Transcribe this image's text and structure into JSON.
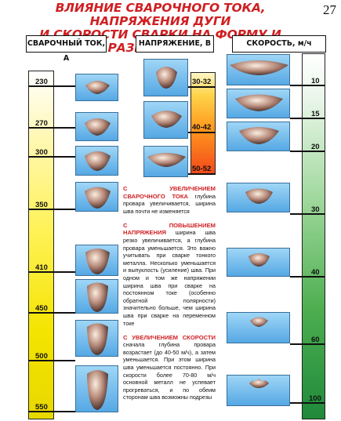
{
  "page": {
    "title_line1": "ВЛИЯНИЕ СВАРОЧНОГО ТОКА, НАПРЯЖЕНИЯ ДУГИ",
    "title_line2": "И СКОРОСТИ СВАРКИ НА ФОРМУ И РАЗМЕРЫ ШВА",
    "page_number": "27"
  },
  "columns": {
    "current": {
      "header": "СВАРОЧНЫЙ ТОК, А",
      "ticks": [
        "230",
        "270",
        "300",
        "350",
        "410",
        "450",
        "500",
        "550"
      ]
    },
    "voltage": {
      "header": "НАПРЯЖЕНИЕ, В",
      "ticks": [
        "30-32",
        "40-42",
        "50-52"
      ]
    },
    "speed": {
      "header": "СКОРОСТЬ, м/ч",
      "ticks": [
        "10",
        "15",
        "20",
        "30",
        "40",
        "60",
        "100"
      ]
    }
  },
  "notes": {
    "current_heading": "С УВЕЛИЧЕНИЕМ СВАРОЧНОГО ТОКА",
    "current_body": " глубина провара увеличивается, ширина шва почти не изменяется",
    "voltage_heading": "С ПОВЫШЕНИЕМ НАПРЯЖЕНИЯ",
    "voltage_body": " ширина шва резко увеличивается, а глубина провара уменьшается. Это важно учитывать при сварке тонкого металла. Несколько уменьшается и выпуклость (усиление) шва. При одном и том же напряжении ширина шва при сварке на постоянном токе (особенно обратной полярности) значительно больше, чем ширина шва при сварке на переменном токе",
    "speed_heading": "С УВЕЛИЧЕНИЕМ СКОРОСТИ",
    "speed_body": " сначала глубина провара возрастает (до 40-50 м/ч), а затем уменьшается. При этом ширина шва уменьшается постоянно. При скорости более 70-80 м/ч основной металл не успевает прогреваться, и по обеим сторонам шва возможны подрезы"
  }
}
